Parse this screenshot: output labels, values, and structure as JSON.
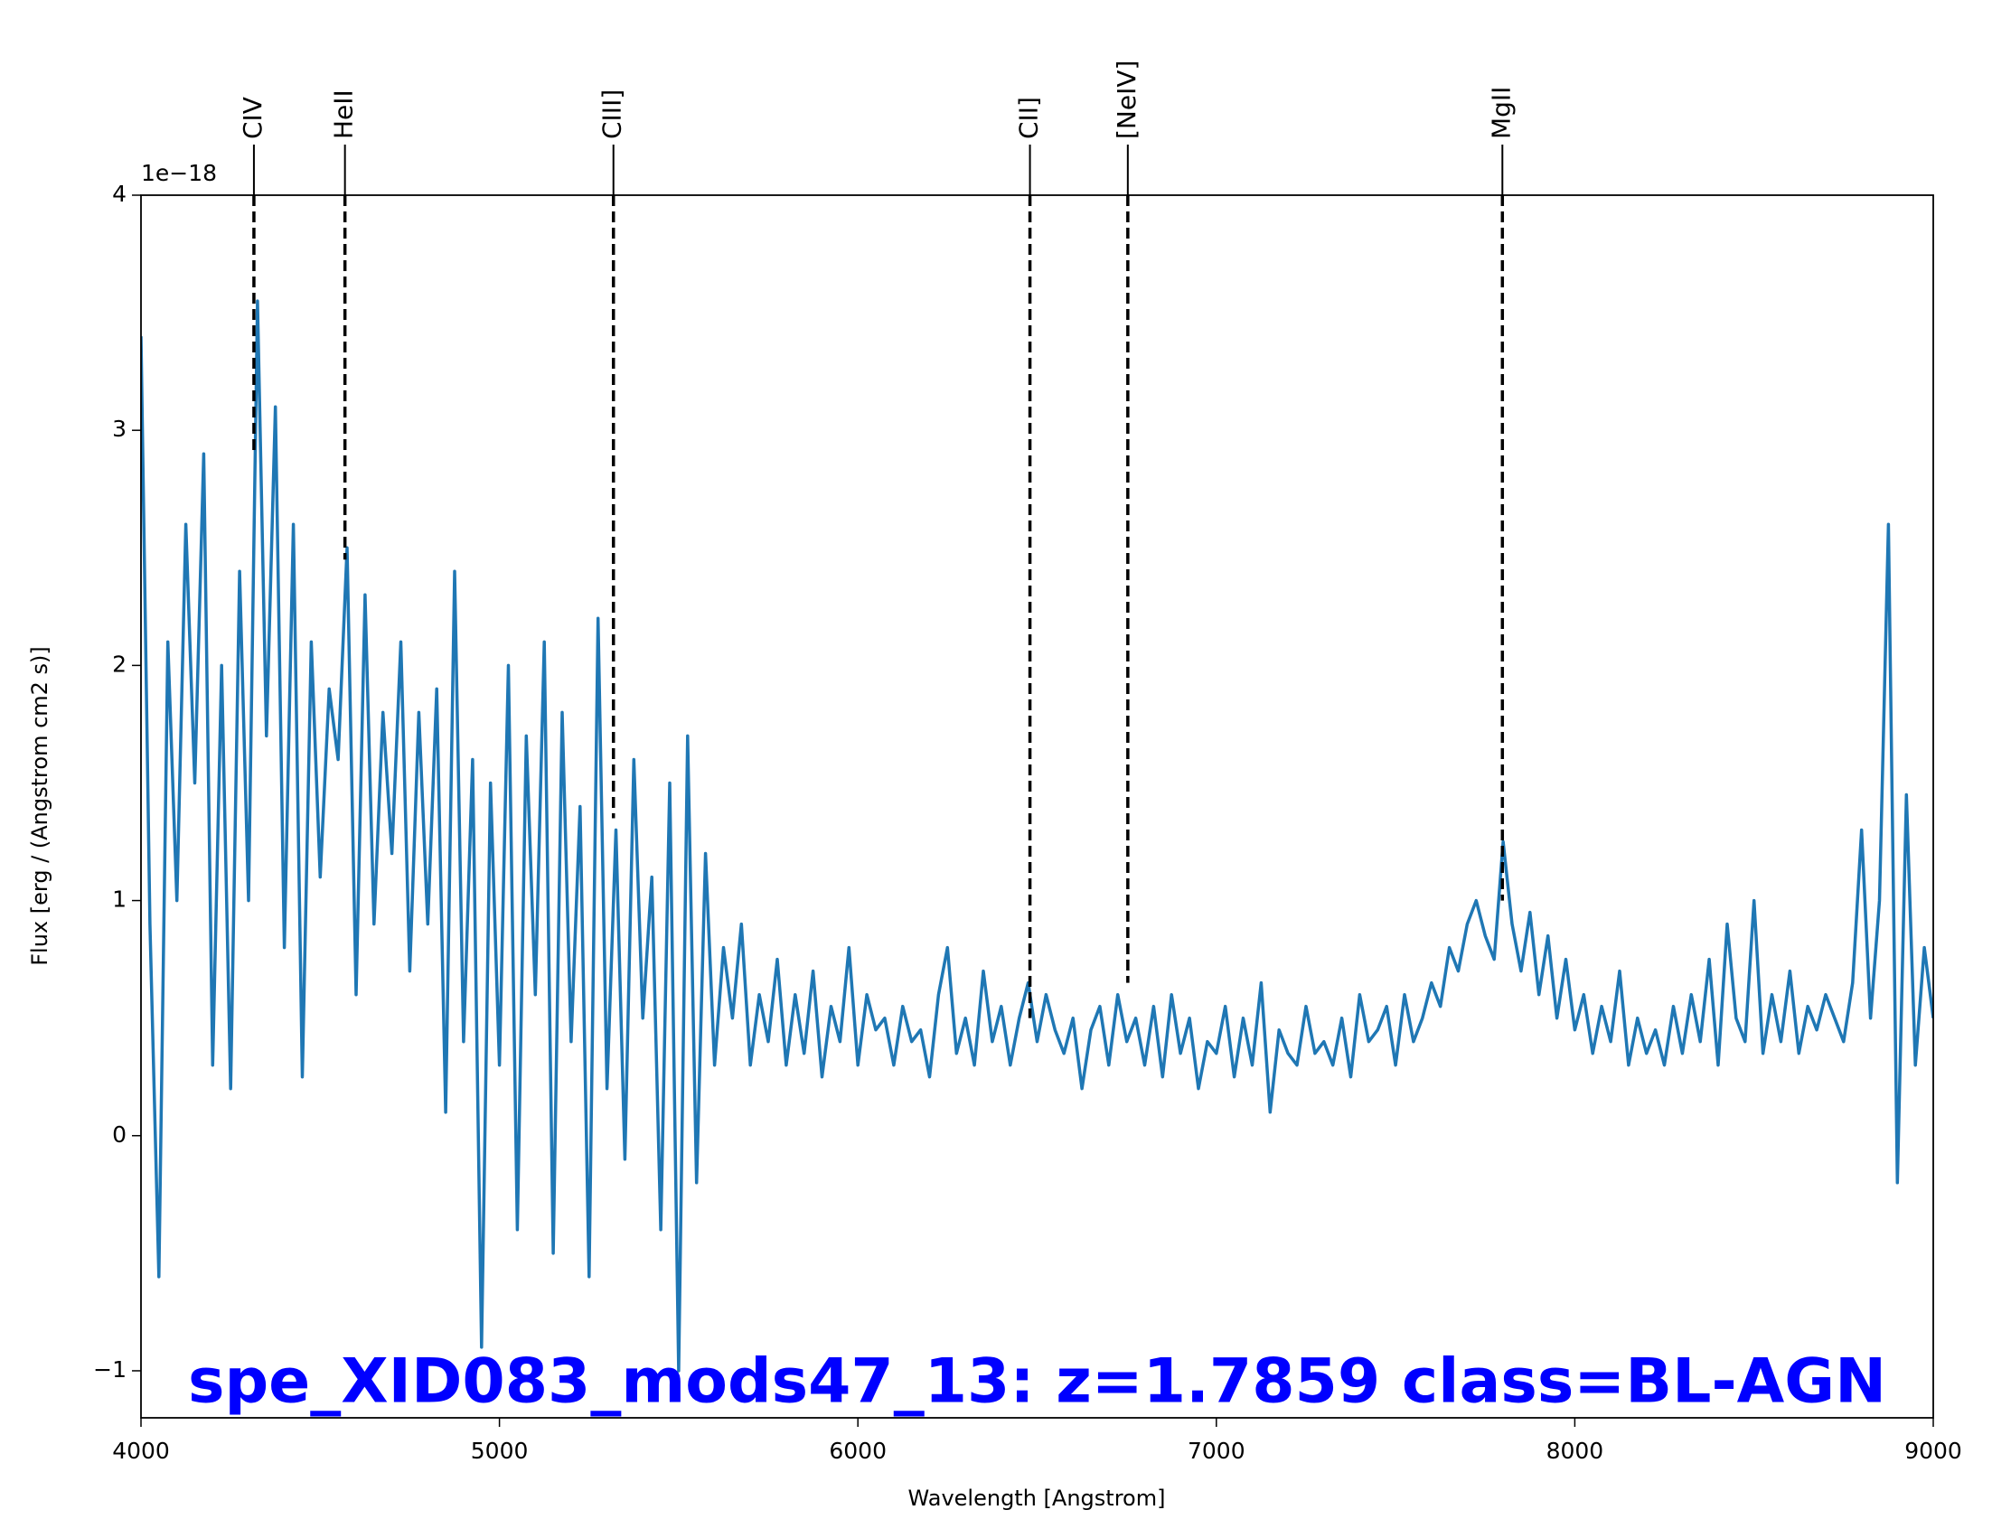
{
  "chart_data": {
    "type": "line",
    "title": "spe_XID083_mods47_13: z=1.7859 class=BL-AGN",
    "x_label": "Wavelength [Angstrom]",
    "y_label": "Flux [erg / (Angstrom cm2 s)]",
    "y_offset_label": "1e−18",
    "xlim": [
      4000,
      9000
    ],
    "xticks": [
      4000,
      5000,
      6000,
      7000,
      8000,
      9000
    ],
    "ylim": [
      -1.2,
      4
    ],
    "yticks": [
      {
        "value": -1,
        "label": "−1"
      },
      0,
      1,
      2,
      3,
      4
    ],
    "x": [
      4000,
      4025,
      4050,
      4075,
      4100,
      4125,
      4150,
      4175,
      4200,
      4225,
      4250,
      4275,
      4300,
      4325,
      4350,
      4375,
      4400,
      4425,
      4450,
      4475,
      4500,
      4525,
      4550,
      4575,
      4600,
      4625,
      4650,
      4675,
      4700,
      4725,
      4750,
      4775,
      4800,
      4825,
      4850,
      4875,
      4900,
      4925,
      4950,
      4975,
      5000,
      5025,
      5050,
      5075,
      5100,
      5125,
      5150,
      5175,
      5200,
      5225,
      5250,
      5275,
      5300,
      5325,
      5350,
      5375,
      5400,
      5425,
      5450,
      5475,
      5500,
      5525,
      5550,
      5575,
      5600,
      5625,
      5650,
      5675,
      5700,
      5725,
      5750,
      5775,
      5800,
      5825,
      5850,
      5875,
      5900,
      5925,
      5950,
      5975,
      6000,
      6025,
      6050,
      6075,
      6100,
      6125,
      6150,
      6175,
      6200,
      6225,
      6250,
      6275,
      6300,
      6325,
      6350,
      6375,
      6400,
      6425,
      6450,
      6475,
      6500,
      6525,
      6550,
      6575,
      6600,
      6625,
      6650,
      6675,
      6700,
      6725,
      6750,
      6775,
      6800,
      6825,
      6850,
      6875,
      6900,
      6925,
      6950,
      6975,
      7000,
      7025,
      7050,
      7075,
      7100,
      7125,
      7150,
      7175,
      7200,
      7225,
      7250,
      7275,
      7300,
      7325,
      7350,
      7375,
      7400,
      7425,
      7450,
      7475,
      7500,
      7525,
      7550,
      7575,
      7600,
      7625,
      7650,
      7675,
      7700,
      7725,
      7750,
      7775,
      7800,
      7825,
      7850,
      7875,
      7900,
      7925,
      7950,
      7975,
      8000,
      8025,
      8050,
      8075,
      8100,
      8125,
      8150,
      8175,
      8200,
      8225,
      8250,
      8275,
      8300,
      8325,
      8350,
      8375,
      8400,
      8425,
      8450,
      8475,
      8500,
      8525,
      8550,
      8575,
      8600,
      8625,
      8650,
      8675,
      8700,
      8725,
      8750,
      8775,
      8800,
      8825,
      8850,
      8875,
      8900,
      8925,
      8950,
      8975,
      9000
    ],
    "series": [
      {
        "name": "flux",
        "color": "#1f77b4",
        "values": [
          3.4,
          0.9,
          -0.6,
          2.1,
          1.0,
          2.6,
          1.5,
          2.9,
          0.3,
          2.0,
          0.2,
          2.4,
          1.0,
          3.55,
          1.7,
          3.1,
          0.8,
          2.6,
          0.25,
          2.1,
          1.1,
          1.9,
          1.6,
          2.5,
          0.6,
          2.3,
          0.9,
          1.8,
          1.2,
          2.1,
          0.7,
          1.8,
          0.9,
          1.9,
          0.1,
          2.4,
          0.4,
          1.6,
          -0.9,
          1.5,
          0.3,
          2.0,
          -0.4,
          1.7,
          0.6,
          2.1,
          -0.5,
          1.8,
          0.4,
          1.4,
          -0.6,
          2.2,
          0.2,
          1.3,
          -0.1,
          1.6,
          0.5,
          1.1,
          -0.4,
          1.5,
          -1.0,
          1.7,
          -0.2,
          1.2,
          0.3,
          0.8,
          0.5,
          0.9,
          0.3,
          0.6,
          0.4,
          0.75,
          0.3,
          0.6,
          0.35,
          0.7,
          0.25,
          0.55,
          0.4,
          0.8,
          0.3,
          0.6,
          0.45,
          0.5,
          0.3,
          0.55,
          0.4,
          0.45,
          0.25,
          0.6,
          0.8,
          0.35,
          0.5,
          0.3,
          0.7,
          0.4,
          0.55,
          0.3,
          0.5,
          0.65,
          0.4,
          0.6,
          0.45,
          0.35,
          0.5,
          0.2,
          0.45,
          0.55,
          0.3,
          0.6,
          0.4,
          0.5,
          0.3,
          0.55,
          0.25,
          0.6,
          0.35,
          0.5,
          0.2,
          0.4,
          0.35,
          0.55,
          0.25,
          0.5,
          0.3,
          0.65,
          0.1,
          0.45,
          0.35,
          0.3,
          0.55,
          0.35,
          0.4,
          0.3,
          0.5,
          0.25,
          0.6,
          0.4,
          0.45,
          0.55,
          0.3,
          0.6,
          0.4,
          0.5,
          0.65,
          0.55,
          0.8,
          0.7,
          0.9,
          1.0,
          0.85,
          0.75,
          1.25,
          0.9,
          0.7,
          0.95,
          0.6,
          0.85,
          0.5,
          0.75,
          0.45,
          0.6,
          0.35,
          0.55,
          0.4,
          0.7,
          0.3,
          0.5,
          0.35,
          0.45,
          0.3,
          0.55,
          0.35,
          0.6,
          0.4,
          0.75,
          0.3,
          0.9,
          0.5,
          0.4,
          1.0,
          0.35,
          0.6,
          0.4,
          0.7,
          0.35,
          0.55,
          0.45,
          0.6,
          0.5,
          0.4,
          0.65,
          1.3,
          0.5,
          1.0,
          2.6,
          -0.2,
          1.45,
          0.3,
          0.8,
          0.5
        ]
      }
    ],
    "lines": [
      {
        "name": "CIV",
        "x": 4315,
        "y": 2.9
      },
      {
        "name": "HeII",
        "x": 4569,
        "y": 2.45
      },
      {
        "name": "CIII]",
        "x": 5318,
        "y": 1.35
      },
      {
        "name": "CII]",
        "x": 6480,
        "y": 0.5
      },
      {
        "name": "[NeIV]",
        "x": 6753,
        "y": 0.65
      },
      {
        "name": "MgII",
        "x": 7798,
        "y": 1.0
      }
    ]
  }
}
